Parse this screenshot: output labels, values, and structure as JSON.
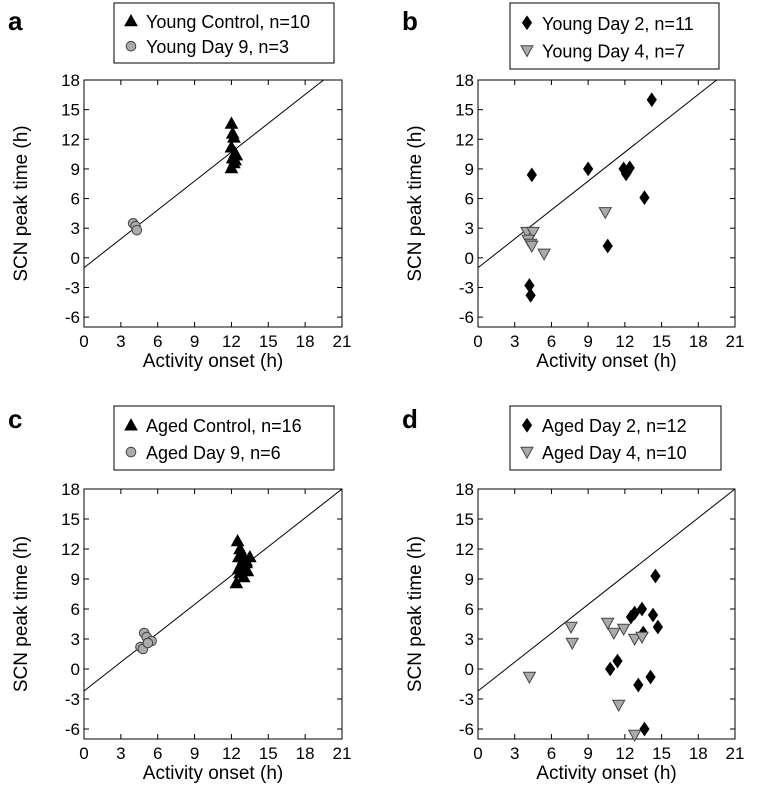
{
  "chart_data": [
    {
      "panel": "a",
      "type": "scatter",
      "xlabel": "Activity onset (h)",
      "ylabel": "SCN peak time (h)",
      "xlim": [
        0,
        21
      ],
      "ylim": [
        -7,
        18
      ],
      "xticks": [
        0,
        3,
        6,
        9,
        12,
        15,
        18,
        21
      ],
      "yticks": [
        -6,
        -3,
        0,
        3,
        6,
        9,
        12,
        15,
        18
      ],
      "legend_position": "top",
      "reference_line": [
        [
          0,
          -1
        ],
        [
          19.5,
          18
        ]
      ],
      "series": [
        {
          "name": "Young Control, n=10",
          "marker": "triangle-up",
          "color": "#000000",
          "x": [
            12.0,
            12.1,
            12.2,
            12.0,
            12.3,
            12.1,
            12.4,
            12.2,
            12.0,
            12.3
          ],
          "y": [
            13.6,
            12.6,
            12.2,
            11.2,
            10.6,
            10.1,
            10.4,
            9.6,
            9.1,
            9.9
          ]
        },
        {
          "name": "Young Day 9, n=3",
          "marker": "circle",
          "color": "#aaaaaa",
          "x": [
            4.0,
            4.2,
            4.3
          ],
          "y": [
            3.5,
            3.2,
            2.8
          ]
        }
      ]
    },
    {
      "panel": "b",
      "type": "scatter",
      "xlabel": "Activity onset (h)",
      "ylabel": "SCN peak time (h)",
      "xlim": [
        0,
        21
      ],
      "ylim": [
        -7,
        18
      ],
      "xticks": [
        0,
        3,
        6,
        9,
        12,
        15,
        18,
        21
      ],
      "yticks": [
        -6,
        -3,
        0,
        3,
        6,
        9,
        12,
        15,
        18
      ],
      "legend_position": "top",
      "reference_line": [
        [
          0,
          -1
        ],
        [
          19.5,
          18
        ]
      ],
      "series": [
        {
          "name": "Young Day 2, n=11",
          "marker": "diamond",
          "color": "#000000",
          "x": [
            4.4,
            4.2,
            4.3,
            9.0,
            11.9,
            12.2,
            12.1,
            12.4,
            14.2,
            13.6,
            10.6
          ],
          "y": [
            8.4,
            -2.8,
            -3.8,
            9.0,
            9.0,
            8.7,
            8.5,
            9.1,
            16.0,
            6.1,
            1.2
          ]
        },
        {
          "name": "Young Day 4, n=7",
          "marker": "triangle-down",
          "color": "#aaaaaa",
          "x": [
            4.0,
            4.5,
            4.1,
            4.3,
            4.4,
            5.4,
            10.4
          ],
          "y": [
            2.6,
            2.6,
            1.8,
            1.4,
            1.2,
            0.4,
            4.6
          ]
        }
      ]
    },
    {
      "panel": "c",
      "type": "scatter",
      "xlabel": "Activity onset (h)",
      "ylabel": "SCN peak time (h)",
      "xlim": [
        0,
        21
      ],
      "ylim": [
        -7,
        18
      ],
      "xticks": [
        0,
        3,
        6,
        9,
        12,
        15,
        18,
        21
      ],
      "yticks": [
        -6,
        -3,
        0,
        3,
        6,
        9,
        12,
        15,
        18
      ],
      "legend_position": "top",
      "reference_line": [
        [
          0,
          -2.2
        ],
        [
          21,
          18
        ]
      ],
      "series": [
        {
          "name": "Aged Control, n=16",
          "marker": "triangle-up",
          "color": "#000000",
          "x": [
            12.5,
            12.7,
            12.8,
            12.6,
            13.0,
            12.9,
            13.2,
            13.5,
            12.8,
            13.1,
            12.6,
            13.3,
            12.7,
            13.0,
            12.4,
            13.2
          ],
          "y": [
            12.8,
            12.0,
            11.6,
            11.2,
            11.0,
            11.4,
            10.8,
            11.2,
            10.5,
            10.2,
            10.0,
            9.8,
            9.6,
            9.2,
            8.6,
            10.6
          ]
        },
        {
          "name": "Aged Day 9, n=6",
          "marker": "circle",
          "color": "#aaaaaa",
          "x": [
            4.9,
            5.1,
            5.5,
            4.6,
            4.8,
            5.2
          ],
          "y": [
            3.6,
            3.2,
            2.8,
            2.2,
            2.0,
            2.6
          ]
        }
      ]
    },
    {
      "panel": "d",
      "type": "scatter",
      "xlabel": "Activity onset (h)",
      "ylabel": "SCN peak time (h)",
      "xlim": [
        0,
        21
      ],
      "ylim": [
        -7,
        18
      ],
      "xticks": [
        0,
        3,
        6,
        9,
        12,
        15,
        18,
        21
      ],
      "yticks": [
        -6,
        -3,
        0,
        3,
        6,
        9,
        12,
        15,
        18
      ],
      "legend_position": "top",
      "reference_line": [
        [
          0,
          -2.2
        ],
        [
          21,
          18
        ]
      ],
      "series": [
        {
          "name": "Aged Day 2, n=12",
          "marker": "diamond",
          "color": "#000000",
          "x": [
            14.5,
            14.3,
            14.7,
            12.8,
            13.4,
            12.5,
            13.5,
            11.4,
            10.8,
            14.1,
            13.1,
            13.6
          ],
          "y": [
            9.3,
            5.4,
            4.2,
            5.6,
            6.0,
            5.2,
            3.6,
            0.8,
            0.0,
            -0.8,
            -1.6,
            -6.0
          ]
        },
        {
          "name": "Aged Day 4, n=10",
          "marker": "triangle-down",
          "color": "#aaaaaa",
          "x": [
            4.2,
            7.6,
            7.7,
            10.6,
            11.1,
            11.9,
            12.8,
            13.4,
            11.5,
            12.8
          ],
          "y": [
            -0.8,
            4.2,
            2.6,
            4.6,
            3.6,
            4.0,
            3.0,
            3.2,
            -3.6,
            -6.6
          ]
        }
      ]
    }
  ]
}
